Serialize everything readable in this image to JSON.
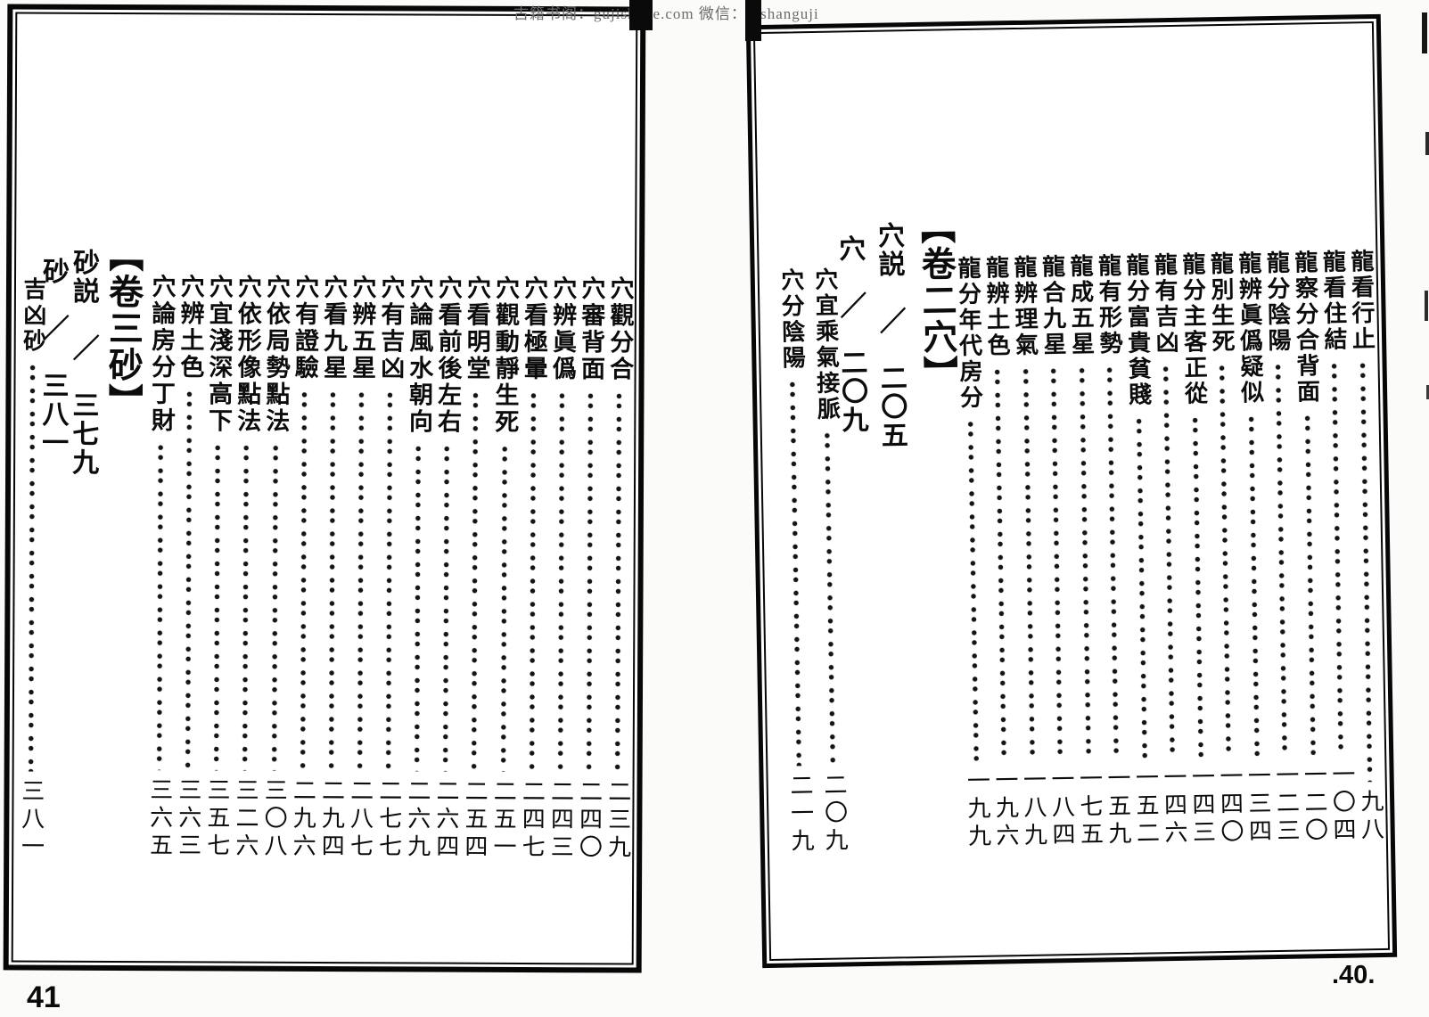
{
  "watermark": "古籍书阁：gujishuge.com 微信：yishanguji",
  "left_page": {
    "page_label": "41",
    "volume_heading": "【卷三砂】",
    "sub_headings": [
      {
        "text": "砂説　／　三七九"
      },
      {
        "text": "砂　／　三八一"
      }
    ],
    "side_entry": {
      "title": "吉凶砂",
      "page": "三八一"
    },
    "entries": [
      {
        "title": "穴觀分合",
        "page": "二三九"
      },
      {
        "title": "穴審背面",
        "page": "二四〇"
      },
      {
        "title": "穴辨眞僞",
        "page": "二四三"
      },
      {
        "title": "穴看極暈",
        "page": "二四七"
      },
      {
        "title": "穴觀動靜生死",
        "page": "二五一"
      },
      {
        "title": "穴看明堂",
        "page": "二五四"
      },
      {
        "title": "穴看前後左右",
        "page": "二六四"
      },
      {
        "title": "穴論風水朝向",
        "page": "二六九"
      },
      {
        "title": "穴有吉凶",
        "page": "二七七"
      },
      {
        "title": "穴辨五星",
        "page": "二八七"
      },
      {
        "title": "穴看九星",
        "page": "二九四"
      },
      {
        "title": "穴有證驗",
        "page": "二九六"
      },
      {
        "title": "穴依局勢點法",
        "page": "三〇八"
      },
      {
        "title": "穴依形像點法",
        "page": "三二六"
      },
      {
        "title": "穴宜淺深高下",
        "page": "三五七"
      },
      {
        "title": "穴辨土色",
        "page": "三六三"
      },
      {
        "title": "穴論房分丁財",
        "page": "三六五"
      }
    ]
  },
  "right_page": {
    "page_label": ".40.",
    "volume_heading": "【卷二穴】",
    "sub_headings": [
      {
        "text": "穴説　／　二〇五"
      },
      {
        "text": "穴　／　二〇九"
      }
    ],
    "side_entries": [
      {
        "title": "穴宜乘氣接脈",
        "page": "二〇九"
      },
      {
        "title": "穴分陰陽",
        "page": "二一九"
      }
    ],
    "entries": [
      {
        "title": "龍看行止",
        "page": "九八"
      },
      {
        "title": "龍看住結",
        "page": "一〇四"
      },
      {
        "title": "龍察分合背面",
        "page": "一二〇"
      },
      {
        "title": "龍分陰陽",
        "page": "一二三"
      },
      {
        "title": "龍辨眞僞疑似",
        "page": "一三四"
      },
      {
        "title": "龍別生死",
        "page": "一四〇"
      },
      {
        "title": "龍分主客正從",
        "page": "一四三"
      },
      {
        "title": "龍有吉凶",
        "page": "一四六"
      },
      {
        "title": "龍分富貴貧賤",
        "page": "一五二"
      },
      {
        "title": "龍有形勢",
        "page": "一五九"
      },
      {
        "title": "龍成五星",
        "page": "一七五"
      },
      {
        "title": "龍合九星",
        "page": "一八四"
      },
      {
        "title": "龍辨理氣",
        "page": "一八九"
      },
      {
        "title": "龍辨土色",
        "page": "一九六"
      },
      {
        "title": "龍分年代房分",
        "page": "一九九"
      }
    ]
  }
}
